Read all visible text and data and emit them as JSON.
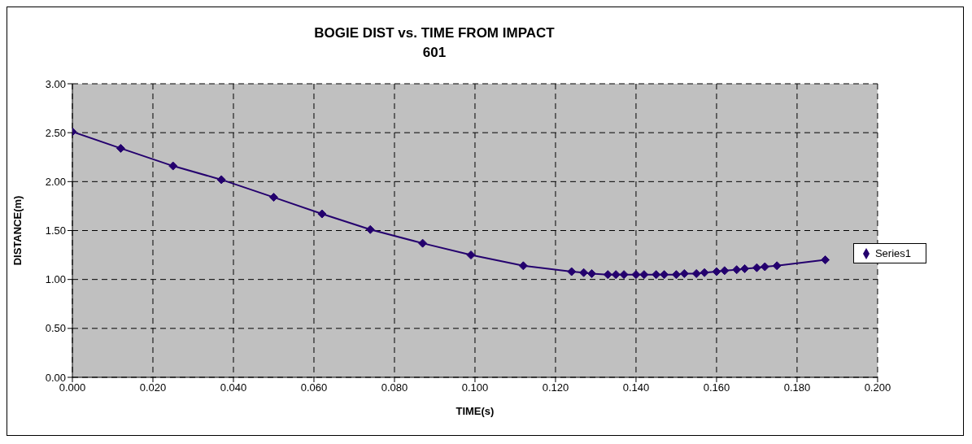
{
  "chart_data": {
    "type": "line",
    "title": "BOGIE DIST vs. TIME FROM IMPACT",
    "subtitle": "601",
    "xlabel": "TIME(s)",
    "ylabel": "DISTANCE(m)",
    "x": [
      0,
      0.012,
      0.025,
      0.037,
      0.05,
      0.062,
      0.074,
      0.087,
      0.099,
      0.112,
      0.124,
      0.127,
      0.129,
      0.133,
      0.135,
      0.137,
      0.14,
      0.142,
      0.145,
      0.147,
      0.15,
      0.152,
      0.155,
      0.157,
      0.16,
      0.162,
      0.165,
      0.167,
      0.17,
      0.172,
      0.175,
      0.187
    ],
    "series": [
      {
        "name": "Series1",
        "color": "#24006e",
        "values": [
          2.51,
          2.34,
          2.16,
          2.02,
          1.84,
          1.67,
          1.51,
          1.37,
          1.25,
          1.14,
          1.08,
          1.07,
          1.06,
          1.05,
          1.05,
          1.05,
          1.05,
          1.05,
          1.05,
          1.05,
          1.05,
          1.06,
          1.06,
          1.07,
          1.08,
          1.09,
          1.1,
          1.11,
          1.12,
          1.13,
          1.14,
          1.2
        ]
      }
    ],
    "xlim": [
      0,
      0.2
    ],
    "xticks": [
      {
        "value": 0,
        "label": "0.000"
      },
      {
        "value": 0.02,
        "label": "0.020"
      },
      {
        "value": 0.04,
        "label": "0.040"
      },
      {
        "value": 0.06,
        "label": "0.060"
      },
      {
        "value": 0.08,
        "label": "0.080"
      },
      {
        "value": 0.1,
        "label": "0.100"
      },
      {
        "value": 0.12,
        "label": "0.120"
      },
      {
        "value": 0.14,
        "label": "0.140"
      },
      {
        "value": 0.16,
        "label": "0.160"
      },
      {
        "value": 0.18,
        "label": "0.180"
      },
      {
        "value": 0.2,
        "label": "0.200"
      }
    ],
    "ylim": [
      0,
      3
    ],
    "yticks": [
      {
        "value": 0,
        "label": "0.00"
      },
      {
        "value": 0.5,
        "label": "0.50"
      },
      {
        "value": 1,
        "label": "1.00"
      },
      {
        "value": 1.5,
        "label": "1.50"
      },
      {
        "value": 2,
        "label": "2.00"
      },
      {
        "value": 2.5,
        "label": "2.50"
      },
      {
        "value": 3,
        "label": "3.00"
      }
    ],
    "grid": true,
    "legend": "right",
    "marker": "diamond",
    "line_style": "solid"
  }
}
